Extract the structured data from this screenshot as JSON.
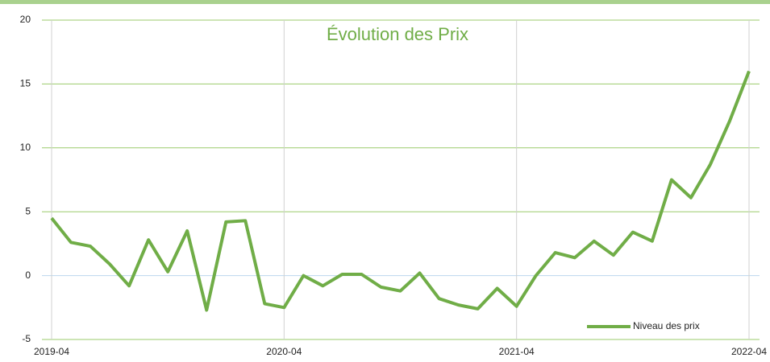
{
  "chart_data": {
    "type": "line",
    "title": "Évolution des Prix",
    "categories": [
      "2019-04",
      null,
      null,
      null,
      null,
      null,
      null,
      null,
      null,
      null,
      null,
      null,
      "2020-04",
      null,
      null,
      null,
      null,
      null,
      null,
      null,
      null,
      null,
      null,
      null,
      "2021-04",
      null,
      null,
      null,
      null,
      null,
      null,
      null,
      null,
      null,
      null,
      null,
      "2022-04"
    ],
    "series": [
      {
        "name": "Niveau des prix",
        "color": "#70ad47",
        "values": [
          4.5,
          2.6,
          2.3,
          0.9,
          -0.8,
          2.8,
          0.3,
          3.5,
          -2.7,
          4.2,
          4.3,
          -2.2,
          -2.5,
          0.0,
          -0.8,
          0.1,
          0.1,
          -0.9,
          -1.2,
          0.2,
          -1.8,
          -2.3,
          -2.6,
          -1.0,
          -2.4,
          0.0,
          1.8,
          1.4,
          2.7,
          1.6,
          3.4,
          2.7,
          7.5,
          6.1,
          8.7,
          12.1,
          16.0
        ]
      }
    ],
    "ylim": [
      -5,
      20
    ],
    "yticks": [
      -5,
      0,
      5,
      10,
      15,
      20
    ],
    "grid": true,
    "legend": "lower-right"
  }
}
